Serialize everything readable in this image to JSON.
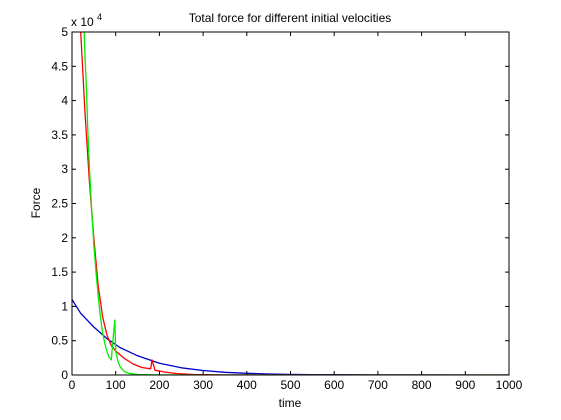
{
  "chart_data": {
    "type": "line",
    "title": "Total force for different initial velocities",
    "xlabel": "time",
    "ylabel": "Force",
    "y_multiplier_base": "x 10",
    "y_multiplier_exp": "4",
    "xlim": [
      0,
      1000
    ],
    "ylim": [
      0,
      50000
    ],
    "x_ticks": [
      0,
      100,
      200,
      300,
      400,
      500,
      600,
      700,
      800,
      900,
      1000
    ],
    "x_tick_labels": [
      "0",
      "100",
      "200",
      "300",
      "400",
      "500",
      "600",
      "700",
      "800",
      "900",
      "1000"
    ],
    "y_ticks": [
      0,
      5000,
      10000,
      15000,
      20000,
      25000,
      30000,
      35000,
      40000,
      45000,
      50000
    ],
    "y_tick_labels": [
      "0",
      "0.5",
      "1",
      "1.5",
      "2",
      "2.5",
      "3",
      "3.5",
      "4",
      "4.5",
      "5"
    ],
    "grid": false,
    "series": [
      {
        "color": "#0000cc",
        "x": [
          0,
          20,
          50,
          80,
          110,
          150,
          200,
          250,
          300,
          350,
          400,
          450,
          500,
          550,
          600,
          700,
          800,
          900,
          1000
        ],
        "y": [
          11000,
          9000,
          7000,
          5300,
          4000,
          2800,
          1700,
          1050,
          650,
          400,
          250,
          150,
          90,
          60,
          40,
          20,
          10,
          5,
          0
        ]
      },
      {
        "color": "#ff0000",
        "x": [
          20,
          25,
          30,
          40,
          50,
          60,
          70,
          80,
          90,
          100,
          120,
          140,
          160,
          180,
          183,
          190,
          210,
          240,
          280,
          350,
          500,
          1000
        ],
        "y": [
          50000,
          44000,
          38000,
          28000,
          20000,
          13000,
          8500,
          5800,
          4300,
          3500,
          2400,
          1600,
          1100,
          900,
          2200,
          700,
          450,
          200,
          80,
          20,
          0,
          0
        ]
      },
      {
        "color": "#00ee00",
        "x": [
          28,
          30,
          33,
          36,
          40,
          45,
          50,
          55,
          60,
          65,
          70,
          75,
          80,
          85,
          90,
          95,
          98,
          100,
          105,
          110,
          120,
          130,
          150,
          200,
          300,
          1000
        ],
        "y": [
          50000,
          46000,
          42000,
          36000,
          30000,
          24000,
          19000,
          15000,
          11500,
          8500,
          6200,
          4600,
          3400,
          2600,
          2200,
          6000,
          8000,
          3500,
          2000,
          1200,
          500,
          250,
          80,
          10,
          0,
          0
        ]
      }
    ]
  }
}
